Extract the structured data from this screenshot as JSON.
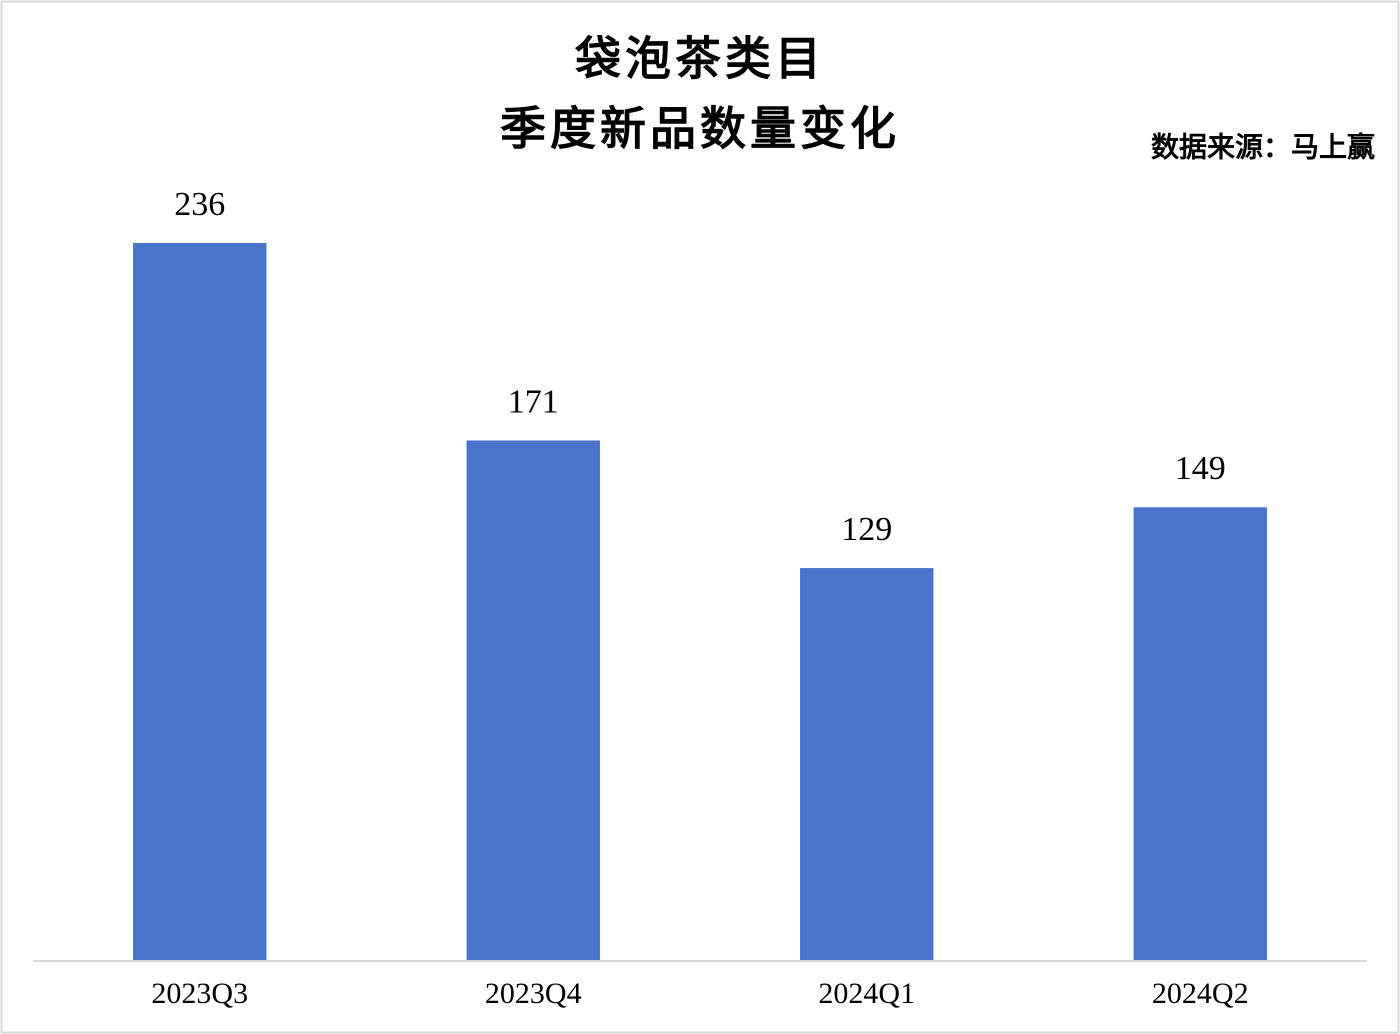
{
  "chart_data": {
    "type": "bar",
    "title": [
      "袋泡茶类目",
      "季度新品数量变化"
    ],
    "source": "数据来源：马上赢",
    "categories": [
      "2023Q3",
      "2023Q4",
      "2024Q1",
      "2024Q2"
    ],
    "values": [
      236,
      171,
      129,
      149
    ],
    "color": "#4874cb"
  }
}
